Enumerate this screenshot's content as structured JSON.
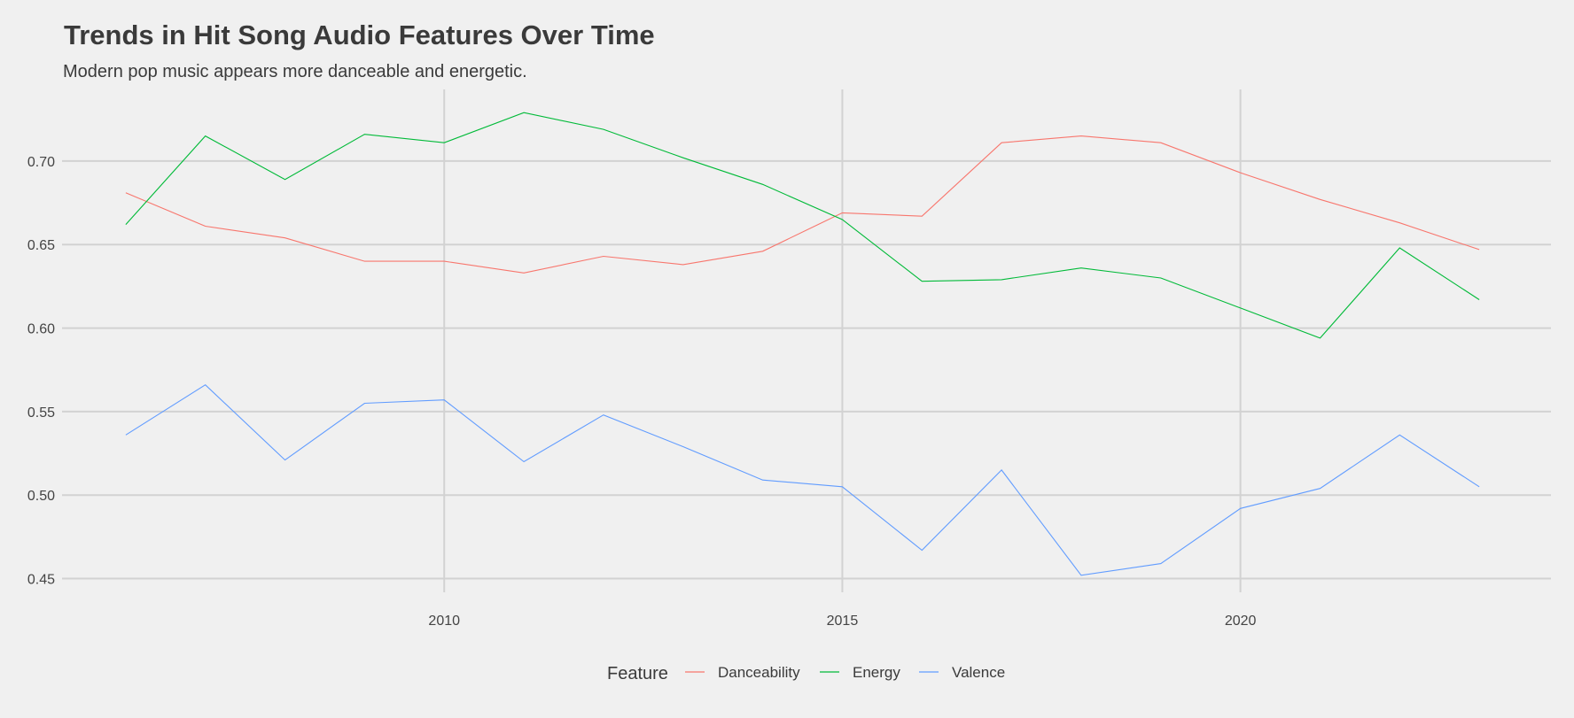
{
  "chart_data": {
    "type": "line",
    "title": "Trends in Hit Song Audio Features Over Time",
    "subtitle": "Modern pop music appears more danceable and energetic.",
    "xlabel": "",
    "ylabel": "",
    "x": [
      2006,
      2007,
      2008,
      2009,
      2010,
      2011,
      2012,
      2013,
      2014,
      2015,
      2016,
      2017,
      2018,
      2019,
      2020,
      2021,
      2022,
      2023
    ],
    "xlim": [
      2005.2,
      2023.9
    ],
    "ylim": [
      0.4418,
      0.7429
    ],
    "x_ticks": [
      2010,
      2015,
      2020
    ],
    "x_tick_labels": [
      "2010",
      "2015",
      "2020"
    ],
    "y_ticks": [
      0.45,
      0.5,
      0.55,
      0.6,
      0.65,
      0.7
    ],
    "y_tick_labels": [
      "0.45",
      "0.50",
      "0.55",
      "0.60",
      "0.65",
      "0.70"
    ],
    "grid": true,
    "legend_title": "Feature",
    "legend_position": "bottom",
    "series": [
      {
        "name": "Danceability",
        "color": "#f8766d",
        "values": [
          0.681,
          0.661,
          0.654,
          0.64,
          0.64,
          0.633,
          0.643,
          0.638,
          0.646,
          0.669,
          0.667,
          0.711,
          0.715,
          0.711,
          0.693,
          0.677,
          0.663,
          0.647
        ]
      },
      {
        "name": "Energy",
        "color": "#00ba38",
        "values": [
          0.662,
          0.715,
          0.689,
          0.716,
          0.711,
          0.729,
          0.719,
          0.702,
          0.686,
          0.665,
          0.628,
          0.629,
          0.636,
          0.63,
          0.612,
          0.594,
          0.648,
          0.617
        ]
      },
      {
        "name": "Valence",
        "color": "#619cff",
        "values": [
          0.536,
          0.566,
          0.521,
          0.555,
          0.557,
          0.52,
          0.548,
          0.529,
          0.509,
          0.505,
          0.467,
          0.515,
          0.452,
          0.459,
          0.492,
          0.504,
          0.536,
          0.505
        ]
      }
    ]
  }
}
